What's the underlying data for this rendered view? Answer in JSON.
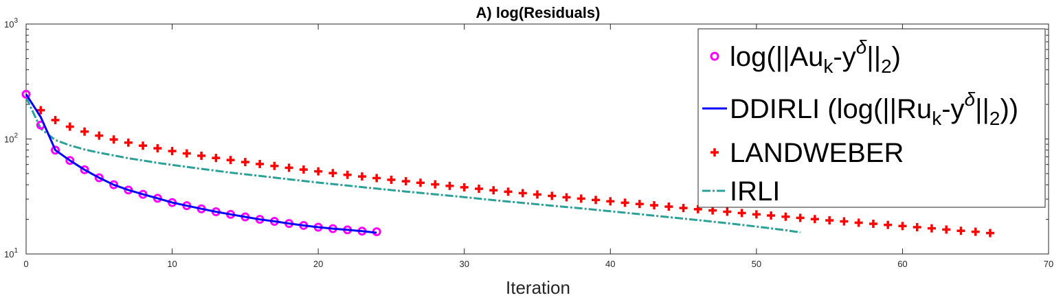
{
  "chart_data": {
    "type": "line",
    "title": "A) log(Residuals)",
    "xlabel": "Iteration",
    "ylabel": "",
    "xlim": [
      0,
      70
    ],
    "ylim": [
      10,
      1000
    ],
    "yscale": "log",
    "xticks": [
      "0",
      "10",
      "20",
      "30",
      "40",
      "50",
      "60",
      "70"
    ],
    "yticks": [
      {
        "value": 10,
        "base": "10",
        "exp": "1"
      },
      {
        "value": 100,
        "base": "10",
        "exp": "2"
      },
      {
        "value": 1000,
        "base": "10",
        "exp": "3"
      }
    ],
    "series": [
      {
        "name": "log(||Au_k-y^δ||_2)",
        "style": "circle-markers",
        "color": "#ff00ff",
        "x": [
          0,
          1,
          2,
          3,
          4,
          5,
          6,
          7,
          8,
          9,
          10,
          11,
          12,
          13,
          14,
          15,
          16,
          17,
          18,
          19,
          20,
          21,
          22,
          23,
          24
        ],
        "y": [
          245,
          132,
          80,
          65,
          54,
          46,
          40,
          36,
          33,
          30.5,
          28,
          26.3,
          24.7,
          23.3,
          22.1,
          21,
          20,
          19.2,
          18.4,
          17.7,
          17.1,
          16.6,
          16.2,
          15.8,
          15.6
        ]
      },
      {
        "name": "DDIRLI (log(||Ru_k-y^δ||_2))",
        "style": "solid-line",
        "color": "#0000ff",
        "x": [
          0,
          1,
          1.5,
          2,
          3,
          4,
          5,
          6,
          7,
          8,
          9,
          10,
          11,
          12,
          13,
          14,
          15,
          16,
          17,
          18,
          19,
          20,
          21,
          22,
          23,
          24
        ],
        "y": [
          245,
          155,
          112,
          80,
          65,
          54,
          46,
          40,
          36,
          33,
          30.5,
          28,
          26.3,
          24.7,
          23.3,
          22.1,
          21,
          20,
          19.2,
          18.4,
          17.7,
          17.1,
          16.6,
          16.2,
          15.8,
          15.3
        ]
      },
      {
        "name": "LANDWEBER",
        "style": "plus-markers",
        "color": "#ff0000",
        "x": [
          1,
          2,
          3,
          4,
          5,
          6,
          7,
          8,
          9,
          10,
          11,
          12,
          13,
          14,
          15,
          16,
          17,
          18,
          19,
          20,
          21,
          22,
          23,
          24,
          25,
          26,
          27,
          28,
          29,
          30,
          31,
          32,
          33,
          34,
          35,
          36,
          37,
          38,
          39,
          40,
          41,
          42,
          43,
          44,
          45,
          46,
          47,
          48,
          49,
          50,
          51,
          52,
          53,
          54,
          55,
          56,
          57,
          58,
          59,
          60,
          61,
          62,
          63,
          64,
          65,
          66
        ],
        "y": [
          178,
          146,
          128,
          116,
          107,
          99,
          93,
          87.5,
          83,
          78.5,
          74.9,
          71.5,
          68.4,
          65.6,
          63,
          60.6,
          58.3,
          56.2,
          54.2,
          52.3,
          50.5,
          48.8,
          47.2,
          45.7,
          44.2,
          42.9,
          41.6,
          40.3,
          39.1,
          38,
          36.9,
          35.8,
          34.8,
          33.8,
          32.9,
          32,
          31.1,
          30.3,
          29.5,
          28.7,
          27.9,
          27.2,
          26.5,
          25.8,
          25.1,
          24.5,
          23.9,
          23.3,
          22.7,
          22.1,
          21.6,
          21.1,
          20.6,
          20.1,
          19.6,
          19.2,
          18.7,
          18.3,
          17.9,
          17.5,
          17.1,
          16.7,
          16.3,
          15.9,
          15.6,
          15.2
        ]
      },
      {
        "name": "IRLI",
        "style": "dash-dot-line",
        "color": "#2aa198",
        "x": [
          0,
          1,
          2,
          3,
          4,
          5,
          6,
          7,
          8,
          9,
          10,
          12,
          14,
          16,
          18,
          20,
          22,
          24,
          26,
          28,
          30,
          32,
          34,
          36,
          38,
          40,
          42,
          44,
          46,
          48,
          50,
          52,
          53
        ],
        "y": [
          230,
          123,
          98,
          88,
          81,
          76,
          72,
          68,
          65,
          62,
          59.5,
          55,
          51,
          47.7,
          44.6,
          41.8,
          39.3,
          37,
          34.9,
          33,
          31.2,
          29.4,
          27.8,
          26.3,
          24.9,
          23.5,
          22.2,
          20.9,
          19.7,
          18.5,
          17.3,
          16.1,
          15.4
        ]
      }
    ],
    "legend": {
      "placement": "top-right",
      "entries": [
        {
          "text": "log(||Au",
          "sub": "k",
          "mid": "-y",
          "sup": "δ",
          "mid2": "||",
          "sub2": "2",
          "end": ")"
        },
        {
          "text": "DDIRLI (log(||Ru",
          "sub": "k",
          "mid": "-y",
          "sup": "δ",
          "mid2": "||",
          "sub2": "2",
          "end": "))"
        },
        {
          "text": "LANDWEBER"
        },
        {
          "text": "IRLI"
        }
      ]
    }
  }
}
